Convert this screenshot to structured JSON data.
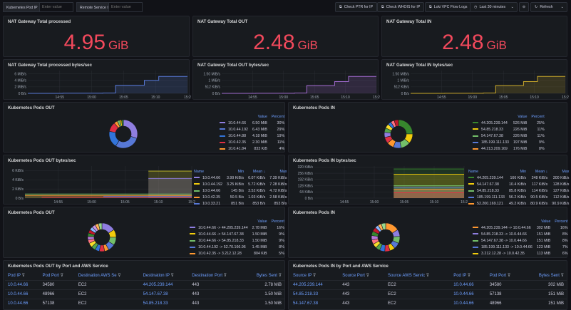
{
  "vars": {
    "pod_ip_label": "Kubernetes Pod IP",
    "pod_ip_placeholder": "Enter value",
    "remote_label": "Remote Service IP",
    "remote_placeholder": "Enter value"
  },
  "toolbar": {
    "ptr": "Check PTR for IP",
    "whois": "Check WHOIS for IP",
    "loki": "Loki VPC Flow Logs",
    "time": "Last 30 minutes",
    "refresh": "Refresh"
  },
  "stats": [
    {
      "title": "NAT Gateway Total processed",
      "value": "4.95",
      "unit": "GiB"
    },
    {
      "title": "NAT Gateway Total OUT",
      "value": "2.48",
      "unit": "GiB"
    },
    {
      "title": "NAT Gateway Total IN",
      "value": "2.48",
      "unit": "GiB"
    }
  ],
  "ts": [
    {
      "title": "NAT Gateway Total processed bytes/sec",
      "color": "#5778d6",
      "yticks": [
        "6 MiB/s",
        "4 MiB/s",
        "2 MiB/s",
        "0 B/s"
      ],
      "yvals": [
        6,
        4,
        2,
        0
      ],
      "ymax": 7,
      "xticks": [
        "14:55",
        "15:00",
        "15:05",
        "15:10",
        "15:2"
      ],
      "xstart": 0,
      "steps": [
        [
          0,
          0
        ],
        [
          0.22,
          0.05
        ],
        [
          0.47,
          0.12
        ],
        [
          0.55,
          2.5
        ],
        [
          0.73,
          4.0
        ],
        [
          0.82,
          5.2
        ],
        [
          1,
          5.2
        ]
      ]
    },
    {
      "title": "NAT Gateway Total OUT bytes/sec",
      "color": "#a16bcf",
      "yticks": [
        "1.50 MiB/s",
        "1 MiB/s",
        "512 KiB/s",
        "0 B/s"
      ],
      "yvals": [
        1.5,
        1,
        0.5,
        0
      ],
      "ymax": 1.75,
      "xticks": [
        "14:55",
        "15:00",
        "15:05",
        "15:10",
        "15:2"
      ],
      "steps": [
        [
          0,
          0
        ],
        [
          0.22,
          0.01
        ],
        [
          0.47,
          0.03
        ],
        [
          0.55,
          0.6
        ],
        [
          0.73,
          0.9
        ],
        [
          0.82,
          1.3
        ],
        [
          1,
          1.3
        ]
      ]
    },
    {
      "title": "NAT Gateway Total IN bytes/sec",
      "color": "#c9a82a",
      "yticks": [
        "1.50 MiB/s",
        "1 MiB/s",
        "512 KiB/s",
        "0 B/s"
      ],
      "yvals": [
        1.5,
        1,
        0.5,
        0
      ],
      "ymax": 1.75,
      "xticks": [
        "14:55",
        "15:00",
        "15:05",
        "15:10",
        "15:2"
      ],
      "steps": [
        [
          0,
          0
        ],
        [
          0.22,
          0.01
        ],
        [
          0.47,
          0.03
        ],
        [
          0.55,
          0.6
        ],
        [
          0.73,
          0.9
        ],
        [
          0.82,
          1.3
        ],
        [
          1,
          1.3
        ]
      ]
    }
  ],
  "pods_out": {
    "title": "Kubernetes Pods OUT",
    "h_value": "Value",
    "h_percent": "Percent",
    "rows": [
      {
        "name": "10.0.44.66",
        "value": "6.50 MiB",
        "pct": "30%",
        "color": "#8f7ee0"
      },
      {
        "name": "10.0.44.192",
        "value": "6.43 MiB",
        "pct": "29%",
        "color": "#5778d6"
      },
      {
        "name": "10.0.44.88",
        "value": "4.18 MiB",
        "pct": "19%",
        "color": "#3274d9"
      },
      {
        "name": "10.0.42.35",
        "value": "2.30 MiB",
        "pct": "11%",
        "color": "#e02f44"
      },
      {
        "name": "10.0.41.84",
        "value": "833 KiB",
        "pct": "4%",
        "color": "#ff9830"
      }
    ],
    "slices": [
      30,
      29,
      19,
      11,
      4,
      3,
      2,
      2
    ],
    "colors": [
      "#8f7ee0",
      "#5778d6",
      "#3274d9",
      "#e02f44",
      "#ff9830",
      "#73bf69",
      "#f2cc0c",
      "#37872d"
    ]
  },
  "pods_in": {
    "title": "Kubernetes Pods IN",
    "h_value": "Value",
    "h_percent": "Percent",
    "rows": [
      {
        "name": "44.205.239.144",
        "value": "526 MiB",
        "pct": "25%",
        "color": "#37872d"
      },
      {
        "name": "54.85.218.33",
        "value": "226 MiB",
        "pct": "11%",
        "color": "#f2cc0c"
      },
      {
        "name": "54.147.67.38",
        "value": "226 MiB",
        "pct": "11%",
        "color": "#73bf69"
      },
      {
        "name": "185.199.111.133",
        "value": "197 MiB",
        "pct": "9%",
        "color": "#5778d6"
      },
      {
        "name": "44.213.209.169",
        "value": "176 MiB",
        "pct": "8%",
        "color": "#ff9830"
      }
    ],
    "slices": [
      25,
      11,
      11,
      9,
      8,
      7,
      6,
      5,
      5,
      4,
      4,
      5
    ],
    "colors": [
      "#37872d",
      "#f2cc0c",
      "#73bf69",
      "#5778d6",
      "#ff9830",
      "#e02f44",
      "#8f7ee0",
      "#56a64b",
      "#fade2a",
      "#3274d9",
      "#ff7383",
      "#c4162a"
    ]
  },
  "pods_out_ts": {
    "title": "Kubernetes Pods OUT bytes/sec",
    "h_name": "Name",
    "h_min": "Min",
    "h_mean": "Mean ↓",
    "h_max": "Max",
    "yticks": [
      "6 KiB/s",
      "4 KiB/s",
      "2 KiB/s",
      "0 B/s"
    ],
    "yvals": [
      6,
      4,
      2,
      0
    ],
    "ymax": 7,
    "xticks": [
      "14:55",
      "15:00",
      "15:05",
      "15:10",
      "15:2"
    ],
    "rows": [
      {
        "name": "10.0.44.66",
        "min": "3.99 KiB/s",
        "mean": "6.07 KiB/s",
        "max": "7.39 KiB/s",
        "color": "#8f7ee0"
      },
      {
        "name": "10.0.44.192",
        "min": "3.25 KiB/s",
        "mean": "5.72 KiB/s",
        "max": "7.28 KiB/s",
        "color": "#f2cc0c"
      },
      {
        "name": "10.0.44.66",
        "min": "145 B/s",
        "mean": "3.52 KiB/s",
        "max": "4.72 KiB/s",
        "color": "#73bf69"
      },
      {
        "name": "10.0.42.35",
        "min": "50.5 B/s",
        "mean": "1.03 KiB/s",
        "max": "2.58 KiB/s",
        "color": "#ff9830"
      },
      {
        "name": "10.0.33.21",
        "min": "851 B/s",
        "mean": "853 B/s",
        "max": "853 B/s",
        "color": "#5778d6"
      }
    ],
    "colors": [
      "#c9c12a",
      "#8f7ee0",
      "#73bf69",
      "#ff9830",
      "#5778d6",
      "#e02f44"
    ]
  },
  "pods_in_ts": {
    "title": "Kubernetes Pods IN bytes/sec",
    "h_name": "Name",
    "h_min": "Min",
    "h_mean": "Mean ↓",
    "h_max": "Max",
    "yticks": [
      "320 KiB/s",
      "256 KiB/s",
      "192 KiB/s",
      "128 KiB/s",
      "64 KiB/s",
      "0 B/s"
    ],
    "yvals": [
      320,
      256,
      192,
      128,
      64,
      0
    ],
    "ymax": 330,
    "xticks": [
      "14:55",
      "15:00",
      "15:05",
      "15:10",
      "15:2"
    ],
    "rows": [
      {
        "name": "44.205.239.144",
        "min": "166 KiB/s",
        "mean": "248 KiB/s",
        "max": "300 KiB/s",
        "color": "#37872d"
      },
      {
        "name": "54.147.67.38",
        "min": "10.4 KiB/s",
        "mean": "117 KiB/s",
        "max": "128 KiB/s",
        "color": "#f2cc0c"
      },
      {
        "name": "54.85.218.33",
        "min": "85.8 KiB/s",
        "mean": "114 KiB/s",
        "max": "127 KiB/s",
        "color": "#73bf69"
      },
      {
        "name": "185.199.111.133",
        "min": "56.2 KiB/s",
        "mean": "90.5 KiB/s",
        "max": "112 KiB/s",
        "color": "#5778d6"
      },
      {
        "name": "52.200.169.121",
        "min": "49.2 KiB/s",
        "mean": "80.9 KiB/s",
        "max": "90.9 KiB/s",
        "color": "#ff9830"
      }
    ],
    "colors": [
      "#37872d",
      "#f2cc0c",
      "#73bf69",
      "#5778d6",
      "#ff9830",
      "#e02f44"
    ]
  },
  "pods_out2": {
    "title": "Kubernetes Pods OUT",
    "h_value": "Value",
    "h_percent": "Percent",
    "rows": [
      {
        "name": "10.0.44.66 -> 44.205.239.144",
        "value": "2.78 MiB",
        "pct": "16%",
        "color": "#8f7ee0"
      },
      {
        "name": "10.0.44.66 -> 54.147.67.38",
        "value": "1.50 MiB",
        "pct": "9%",
        "color": "#f2cc0c"
      },
      {
        "name": "10.0.44.66 -> 54.85.218.33",
        "value": "1.50 MiB",
        "pct": "9%",
        "color": "#73bf69"
      },
      {
        "name": "10.0.44.192 -> 52.70.166.96",
        "value": "1.45 MiB",
        "pct": "8%",
        "color": "#5778d6"
      },
      {
        "name": "10.0.42.35 -> 3.212.12.28",
        "value": "804 KiB",
        "pct": "5%",
        "color": "#ff9830"
      }
    ],
    "slices": [
      16,
      9,
      9,
      8,
      5,
      6,
      5,
      5,
      5,
      4,
      4,
      4,
      4,
      4,
      4,
      4,
      4
    ],
    "colors": [
      "#8f7ee0",
      "#f2cc0c",
      "#73bf69",
      "#5778d6",
      "#ff9830",
      "#e02f44",
      "#3274d9",
      "#56a64b",
      "#fade2a",
      "#ff7383",
      "#b877d9",
      "#37872d",
      "#c4162a",
      "#8ab8ff",
      "#ca95e5",
      "#ffb357",
      "#96d98d"
    ]
  },
  "pods_in2": {
    "title": "Kubernetes Pods IN",
    "h_value": "Value",
    "h_percent": "Percent",
    "rows": [
      {
        "name": "44.205.239.144 -> 10.0.44.66",
        "value": "302 MiB",
        "pct": "16%",
        "color": "#ff9830"
      },
      {
        "name": "54.85.218.33 -> 10.0.44.66",
        "value": "151 MiB",
        "pct": "8%",
        "color": "#8f7ee0"
      },
      {
        "name": "54.147.67.38 -> 10.0.44.66",
        "value": "151 MiB",
        "pct": "8%",
        "color": "#73bf69"
      },
      {
        "name": "185.199.111.133 -> 10.0.44.66",
        "value": "123 MiB",
        "pct": "7%",
        "color": "#5778d6"
      },
      {
        "name": "3.212.12.28 -> 10.0.42.35",
        "value": "113 MiB",
        "pct": "6%",
        "color": "#f2cc0c"
      }
    ],
    "slices": [
      16,
      8,
      8,
      7,
      6,
      6,
      6,
      5,
      5,
      5,
      5,
      5,
      5,
      4,
      4,
      5
    ],
    "colors": [
      "#ff9830",
      "#8f7ee0",
      "#73bf69",
      "#5778d6",
      "#f2cc0c",
      "#e02f44",
      "#3274d9",
      "#56a64b",
      "#fade2a",
      "#ff7383",
      "#b877d9",
      "#37872d",
      "#c4162a",
      "#8ab8ff",
      "#ffb357",
      "#96d98d"
    ]
  },
  "tbl_out": {
    "title": "Kubernetes Pods OUT by Port and AWS Service",
    "cols": [
      "Pod IP",
      "Pod Port",
      "Destination AWS Se",
      "Destination IP",
      "Destination Port",
      "Bytes Sent"
    ],
    "rows": [
      [
        "10.0.44.66",
        "34580",
        "EC2",
        "44.205.239.144",
        "443",
        "2.78 MiB"
      ],
      [
        "10.0.44.66",
        "48966",
        "EC2",
        "54.147.67.38",
        "443",
        "1.50 MiB"
      ],
      [
        "10.0.44.66",
        "57138",
        "EC2",
        "54.85.218.33",
        "443",
        "1.50 MiB"
      ]
    ]
  },
  "tbl_in": {
    "title": "Kubernetes Pods IN by Port and AWS Service",
    "cols": [
      "Source IP",
      "Source Port",
      "Source AWS Servic",
      "Pod IP",
      "Pod Port",
      "Bytes Sent"
    ],
    "rows": [
      [
        "44.205.239.144",
        "443",
        "EC2",
        "10.0.44.66",
        "34580",
        "302 MiB"
      ],
      [
        "54.85.218.33",
        "443",
        "EC2",
        "10.0.44.66",
        "57138",
        "151 MiB"
      ],
      [
        "54.147.67.38",
        "443",
        "EC2",
        "10.0.44.66",
        "48966",
        "151 MiB"
      ]
    ]
  }
}
